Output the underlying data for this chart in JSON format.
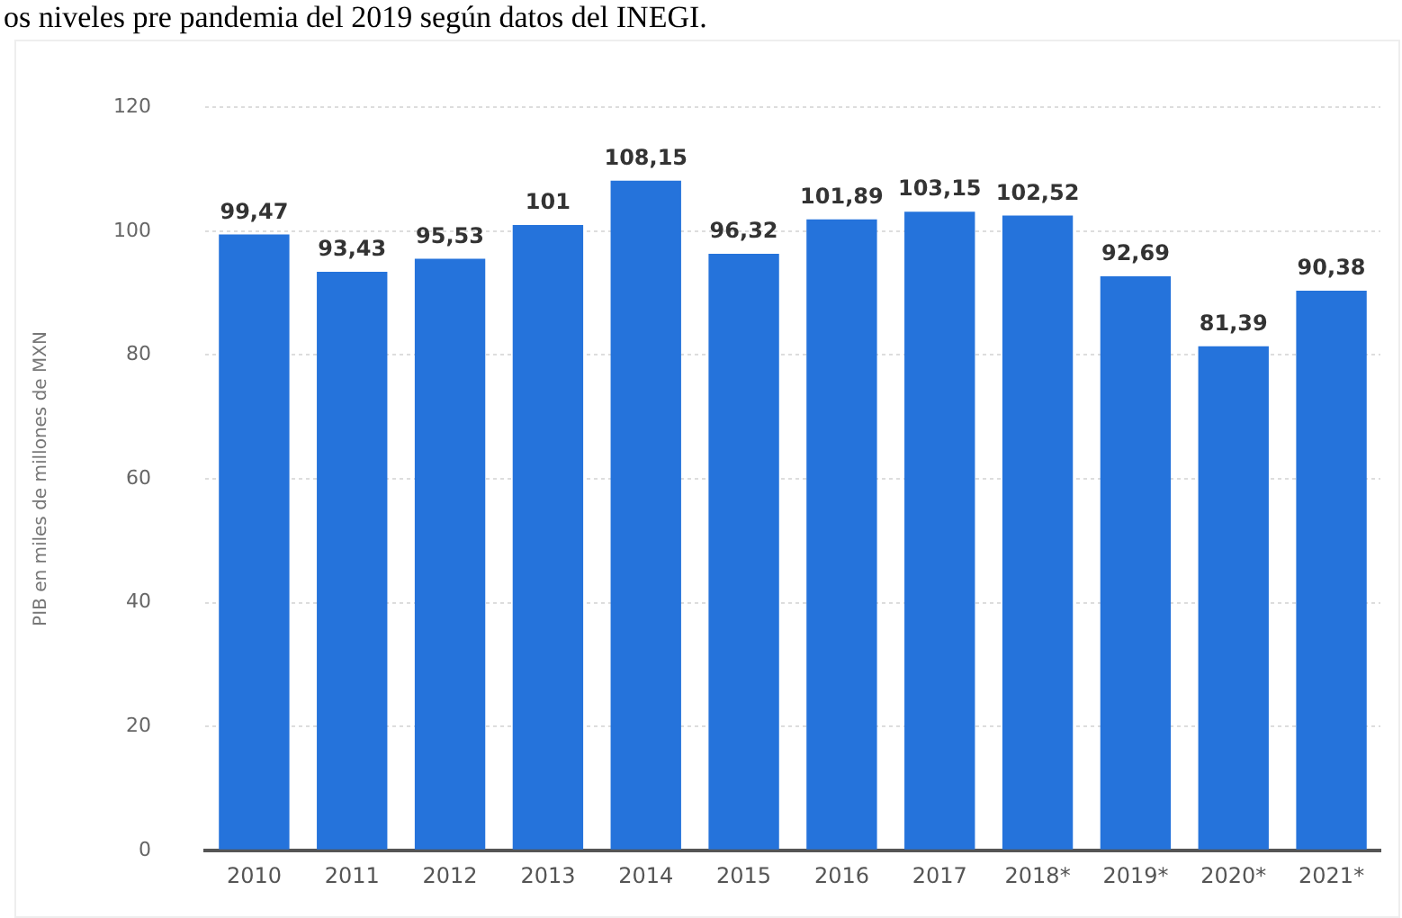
{
  "chart_data": {
    "type": "bar",
    "ylabel": "PIB en miles de millones de MXN",
    "annotations": [
      "os niveles pre pandemia del 2019 según datos del INEGI."
    ],
    "categories": [
      "2010",
      "2011",
      "2012",
      "2013",
      "2014",
      "2015",
      "2016",
      "2017",
      "2018*",
      "2019*",
      "2020*",
      "2021*"
    ],
    "values": [
      99.47,
      93.43,
      95.53,
      101,
      108.15,
      96.32,
      101.89,
      103.15,
      102.52,
      92.69,
      81.39,
      90.38
    ],
    "value_labels": [
      "99,47",
      "93,43",
      "95,53",
      "101",
      "108,15",
      "96,32",
      "101,89",
      "103,15",
      "102,52",
      "92,69",
      "81,39",
      "90,38"
    ],
    "color": "#2573db",
    "ylim": [
      0,
      120
    ],
    "yticks": [
      0,
      20,
      40,
      60,
      80,
      100,
      120
    ],
    "grid": "y",
    "legend": false
  }
}
